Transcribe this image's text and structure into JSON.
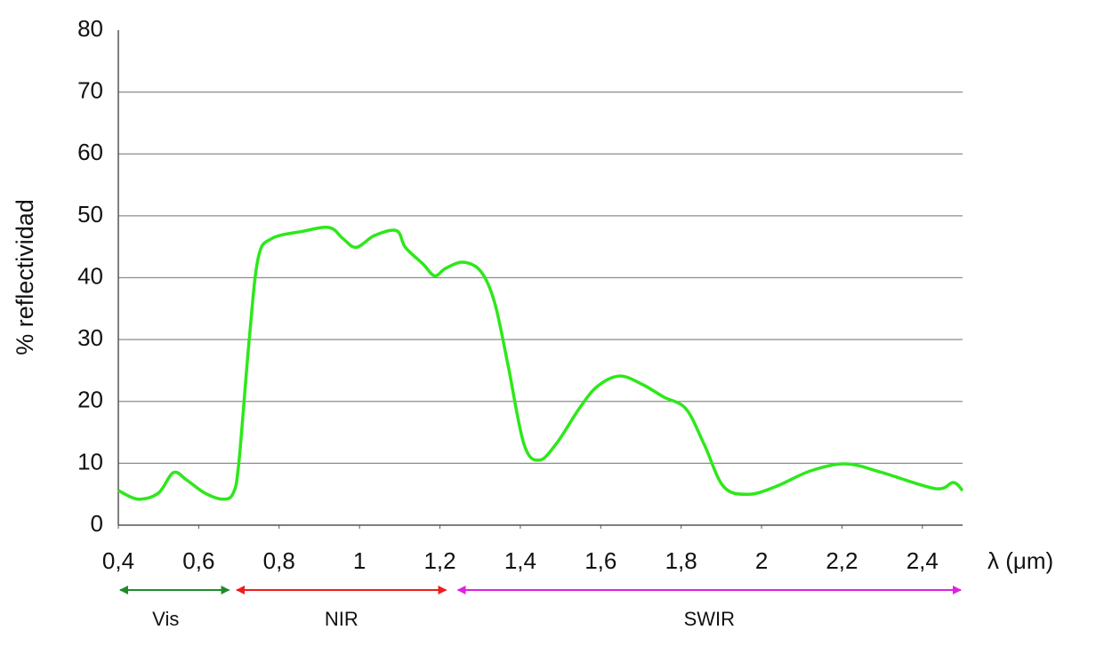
{
  "chart_data": {
    "type": "line",
    "y_label": "% reflectividad",
    "x_label": "λ (μm)",
    "xlim": [
      0.4,
      2.5
    ],
    "ylim": [
      0,
      80
    ],
    "xticks": [
      {
        "value": 0.4,
        "label": "0,4"
      },
      {
        "value": 0.6,
        "label": "0,6"
      },
      {
        "value": 0.8,
        "label": "0,8"
      },
      1,
      {
        "value": 1.2,
        "label": "1,2"
      },
      {
        "value": 1.4,
        "label": "1,4"
      },
      {
        "value": 1.6,
        "label": "1,6"
      },
      {
        "value": 1.8,
        "label": "1,8"
      },
      2,
      {
        "value": 2.2,
        "label": "2,2"
      },
      {
        "value": 2.4,
        "label": "2,4"
      }
    ],
    "yticks": [
      0,
      10,
      20,
      30,
      40,
      50,
      60,
      70,
      80
    ],
    "grid": true,
    "color": "#2de81a",
    "x": [
      0.4,
      0.449,
      0.5,
      0.537,
      0.57,
      0.615,
      0.66,
      0.686,
      0.7,
      0.726,
      0.748,
      0.781,
      0.859,
      0.925,
      0.959,
      0.992,
      1.037,
      1.092,
      1.114,
      1.158,
      1.187,
      1.214,
      1.258,
      1.302,
      1.336,
      1.369,
      1.409,
      1.447,
      1.491,
      1.546,
      1.591,
      1.646,
      1.702,
      1.757,
      1.812,
      1.857,
      1.906,
      1.968,
      2.034,
      2.123,
      2.211,
      2.3,
      2.433,
      2.477,
      2.5
    ],
    "values": [
      5.6,
      4.2,
      5.2,
      8.5,
      7.3,
      5.2,
      4.2,
      5.2,
      10.2,
      30.3,
      43.2,
      46.3,
      47.5,
      48.1,
      46.3,
      44.9,
      46.8,
      47.6,
      44.9,
      42.2,
      40.3,
      41.5,
      42.5,
      41.0,
      36.0,
      26.0,
      13.1,
      10.5,
      13.3,
      18.8,
      22.4,
      24.1,
      22.8,
      20.7,
      18.8,
      13.1,
      6.2,
      5.0,
      6.2,
      8.8,
      9.9,
      8.5,
      5.9,
      6.9,
      5.6
    ],
    "regions": [
      {
        "label": "Vis",
        "start": 0.4,
        "end": 0.68,
        "color": "#1f8c2a"
      },
      {
        "label": "NIR",
        "start": 0.69,
        "end": 1.22,
        "color": "#ee1c1c"
      },
      {
        "label": "SWIR",
        "start": 1.24,
        "end": 2.5,
        "color": "#e020e0"
      }
    ]
  }
}
